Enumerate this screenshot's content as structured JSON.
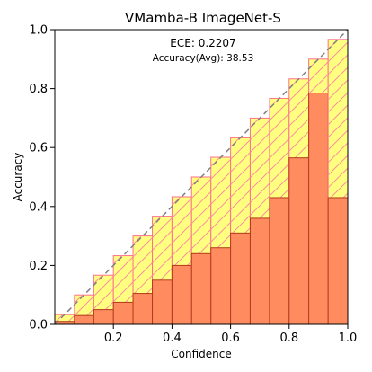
{
  "chart_data": {
    "type": "bar",
    "title": "VMamba-B  ImageNet-S",
    "xlabel": "Confidence",
    "ylabel": "Accuracy",
    "xlim": [
      0,
      1
    ],
    "ylim": [
      0,
      1
    ],
    "xticks": [
      "0.2",
      "0.4",
      "0.6",
      "0.8",
      "1.0"
    ],
    "yticks": [
      "0.0",
      "0.2",
      "0.4",
      "0.6",
      "0.8",
      "1.0"
    ],
    "annotations": {
      "ece": "ECE: 0.2207",
      "accuracy": "Accuracy(Avg): 38.53"
    },
    "bins": [
      {
        "x0": 0.0,
        "x1": 0.067,
        "accuracy": 0.01,
        "gap_top": 0.033
      },
      {
        "x0": 0.067,
        "x1": 0.133,
        "accuracy": 0.03,
        "gap_top": 0.1
      },
      {
        "x0": 0.133,
        "x1": 0.2,
        "accuracy": 0.05,
        "gap_top": 0.167
      },
      {
        "x0": 0.2,
        "x1": 0.267,
        "accuracy": 0.075,
        "gap_top": 0.233
      },
      {
        "x0": 0.267,
        "x1": 0.333,
        "accuracy": 0.105,
        "gap_top": 0.3
      },
      {
        "x0": 0.333,
        "x1": 0.4,
        "accuracy": 0.15,
        "gap_top": 0.367
      },
      {
        "x0": 0.4,
        "x1": 0.467,
        "accuracy": 0.2,
        "gap_top": 0.433
      },
      {
        "x0": 0.467,
        "x1": 0.533,
        "accuracy": 0.24,
        "gap_top": 0.5
      },
      {
        "x0": 0.533,
        "x1": 0.6,
        "accuracy": 0.26,
        "gap_top": 0.567
      },
      {
        "x0": 0.6,
        "x1": 0.667,
        "accuracy": 0.31,
        "gap_top": 0.633
      },
      {
        "x0": 0.667,
        "x1": 0.733,
        "accuracy": 0.36,
        "gap_top": 0.7
      },
      {
        "x0": 0.733,
        "x1": 0.8,
        "accuracy": 0.43,
        "gap_top": 0.767
      },
      {
        "x0": 0.8,
        "x1": 0.867,
        "accuracy": 0.565,
        "gap_top": 0.833
      },
      {
        "x0": 0.867,
        "x1": 0.933,
        "accuracy": 0.785,
        "gap_top": 0.9
      },
      {
        "x0": 0.933,
        "x1": 1.0,
        "accuracy": 0.43,
        "gap_top": 0.967
      }
    ],
    "diagonal": {
      "from": [
        0,
        0
      ],
      "to": [
        1,
        1
      ],
      "style": "dashed"
    },
    "colors": {
      "accuracy_fill": "#ff8c5e",
      "accuracy_edge": "#b23a1c",
      "gap_fill": "#ffff80",
      "gap_edge": "#ff6f8a",
      "hatch": "#ff8fa0",
      "diagonal": "#808080"
    },
    "grid": false,
    "legend": "none"
  }
}
